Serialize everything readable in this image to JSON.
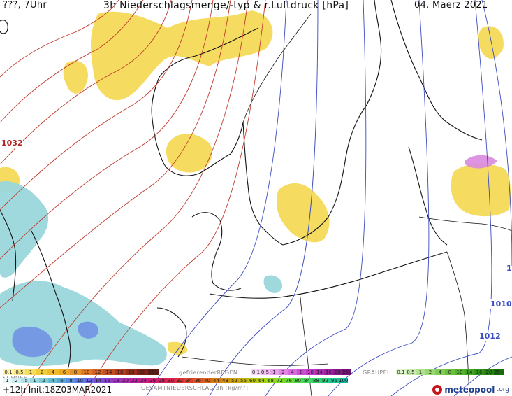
{
  "header": {
    "top_left": "???, 7Uhr",
    "title": "3h Niederschlagsmenge/-typ & r.Luftdruck [hPa]",
    "date": "04. Maerz 2021"
  },
  "isobar_labels": {
    "high": "1032",
    "east": "1",
    "l1010": "1010",
    "l1012": "1012"
  },
  "legend": {
    "rain_values": [
      "0.1",
      "0.5",
      "1",
      "2",
      "4",
      "6",
      "8",
      "10",
      "12",
      "14",
      "16",
      "18",
      "20",
      "25+"
    ],
    "snow_title": "SCHNEE",
    "freezing_rain_title": "gefrierenderREGEN",
    "freezing_values": [
      "0.1",
      "0.5",
      "1",
      "2",
      "4",
      "8",
      "10",
      "14",
      "16",
      "20",
      "25+"
    ],
    "graupel_title": "GRAUPEL",
    "graupel_values": [
      "0.1",
      "0.5",
      "1",
      "2",
      "4",
      "8",
      "10",
      "14",
      "16",
      "20",
      "25+"
    ],
    "snow_values": [
      "1",
      "2",
      ".5",
      "1",
      "2",
      "4",
      "6",
      "8",
      "10",
      "12",
      "14",
      "16",
      "18",
      "20",
      "22",
      "24",
      "26",
      "28",
      "30",
      "32",
      "34",
      "36",
      "40",
      "44",
      "48",
      "52",
      "56",
      "60",
      "64",
      "68",
      "72",
      "76",
      "80",
      "84",
      "88",
      "92",
      "96",
      "100"
    ],
    "total_title": "GESAMTNIEDERSCHLAG 3h [kg/m²]"
  },
  "footer": {
    "run_info": "+12h Init:18Z03MAR2021",
    "brand_name": "meteopool",
    "brand_tld": ".org"
  },
  "colors": {
    "rain": "#f2d24b",
    "snow": "#8fd3d8",
    "snow_heavy": "#7390e8",
    "freezing": "#d98ae0",
    "isobar_high": "#c0392b",
    "isobar_low": "#3b4cc0"
  }
}
